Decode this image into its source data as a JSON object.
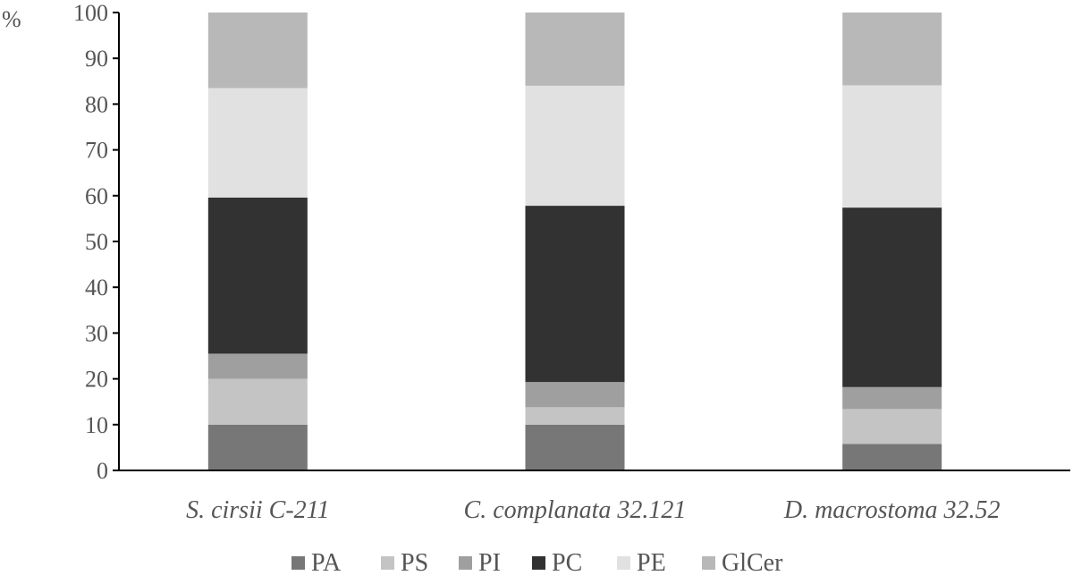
{
  "chart_data": {
    "type": "bar",
    "stacked": true,
    "unit_label": "%",
    "ylim": [
      0,
      100
    ],
    "yticks": [
      0,
      10,
      20,
      30,
      40,
      50,
      60,
      70,
      80,
      90,
      100
    ],
    "categories": [
      "S. cirsii C-211",
      "C. complanata 32.121",
      "D. macrostoma 32.52"
    ],
    "series": [
      {
        "name": "PA",
        "color": "#777777",
        "values": [
          10.0,
          10.0,
          5.8
        ]
      },
      {
        "name": "PS",
        "color": "#c4c4c4",
        "values": [
          10.0,
          3.8,
          7.6
        ]
      },
      {
        "name": "PI",
        "color": "#9f9f9f",
        "values": [
          5.5,
          5.5,
          4.8
        ]
      },
      {
        "name": "PC",
        "color": "#323232",
        "values": [
          34.1,
          38.5,
          39.2
        ]
      },
      {
        "name": "PE",
        "color": "#e1e1e1",
        "values": [
          23.9,
          26.2,
          26.7
        ]
      },
      {
        "name": "GlCer",
        "color": "#b8b8b8",
        "values": [
          16.5,
          16.0,
          15.9
        ]
      }
    ],
    "legend_position": "bottom"
  }
}
